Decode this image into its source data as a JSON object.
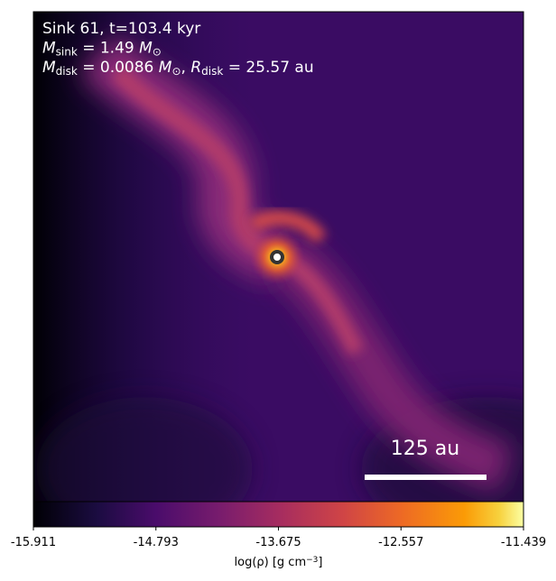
{
  "chart_data": {
    "type": "heatmap",
    "annotations": [
      [
        {
          "t": "Sink 61, t=103.4 kyr"
        }
      ],
      [
        {
          "t": "M",
          "i": true
        },
        {
          "t": "sink",
          "sub": true
        },
        {
          "t": " = 1.49 "
        },
        {
          "t": "M",
          "i": true
        },
        {
          "t": "⊙",
          "sub": true
        }
      ],
      [
        {
          "t": "M",
          "i": true
        },
        {
          "t": "disk",
          "sub": true
        },
        {
          "t": " = 0.0086 "
        },
        {
          "t": "M",
          "i": true
        },
        {
          "t": "⊙",
          "sub": true
        },
        {
          "t": ", "
        },
        {
          "t": "R",
          "i": true
        },
        {
          "t": "disk",
          "sub": true
        },
        {
          "t": " = 25.57 au"
        }
      ]
    ],
    "scale_bar_label": "125 au",
    "colormap": "inferno",
    "clim": [
      -15.911,
      -11.439
    ],
    "cticks": [
      -15.911,
      -14.793,
      -13.675,
      -12.557,
      -11.439
    ],
    "clabel": [
      {
        "t": "log(ρ) [g cm"
      },
      {
        "t": "−3",
        "sup": true
      },
      {
        "t": "]"
      }
    ]
  }
}
